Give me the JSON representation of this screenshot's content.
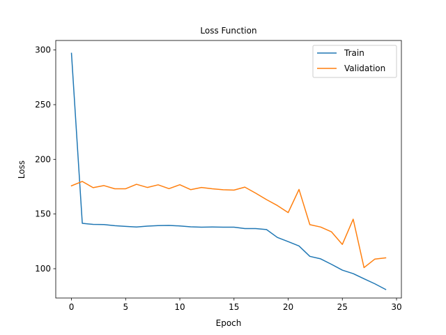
{
  "chart_data": {
    "type": "line",
    "title": "Loss Function",
    "xlabel": "Epoch",
    "ylabel": "Loss",
    "xlim": [
      -1.45,
      30.45
    ],
    "ylim": [
      73.2,
      308.7
    ],
    "xticks": [
      0,
      5,
      10,
      15,
      20,
      25,
      30
    ],
    "yticks": [
      100,
      150,
      200,
      250,
      300
    ],
    "grid": false,
    "legend_position": "top-right",
    "x": [
      0,
      1,
      2,
      3,
      4,
      5,
      6,
      7,
      8,
      9,
      10,
      11,
      12,
      13,
      14,
      15,
      16,
      17,
      18,
      19,
      20,
      21,
      22,
      23,
      24,
      25,
      26,
      27,
      28,
      29
    ],
    "series": [
      {
        "name": "Train",
        "color": "#1f77b4",
        "values": [
          297,
          141.5,
          140.5,
          140.4,
          139.3,
          138.7,
          138.1,
          138.9,
          139.4,
          139.6,
          139.1,
          138.3,
          138.0,
          138.1,
          138.0,
          138.0,
          136.7,
          136.7,
          135.8,
          128.6,
          124.8,
          120.8,
          111.3,
          109.0,
          104.0,
          98.7,
          95.5,
          90.8,
          86.2,
          81.0
        ]
      },
      {
        "name": "Validation",
        "color": "#ff7f0e",
        "values": [
          175.8,
          179.8,
          174.1,
          176.0,
          173.1,
          173.1,
          177.2,
          174.3,
          176.7,
          173.2,
          176.8,
          172.3,
          174.3,
          173.1,
          172.2,
          171.9,
          174.6,
          169.1,
          163.2,
          157.8,
          151.3,
          172.5,
          140.3,
          138.1,
          133.7,
          122.2,
          145.3,
          101.0,
          108.8,
          109.9
        ]
      }
    ]
  }
}
